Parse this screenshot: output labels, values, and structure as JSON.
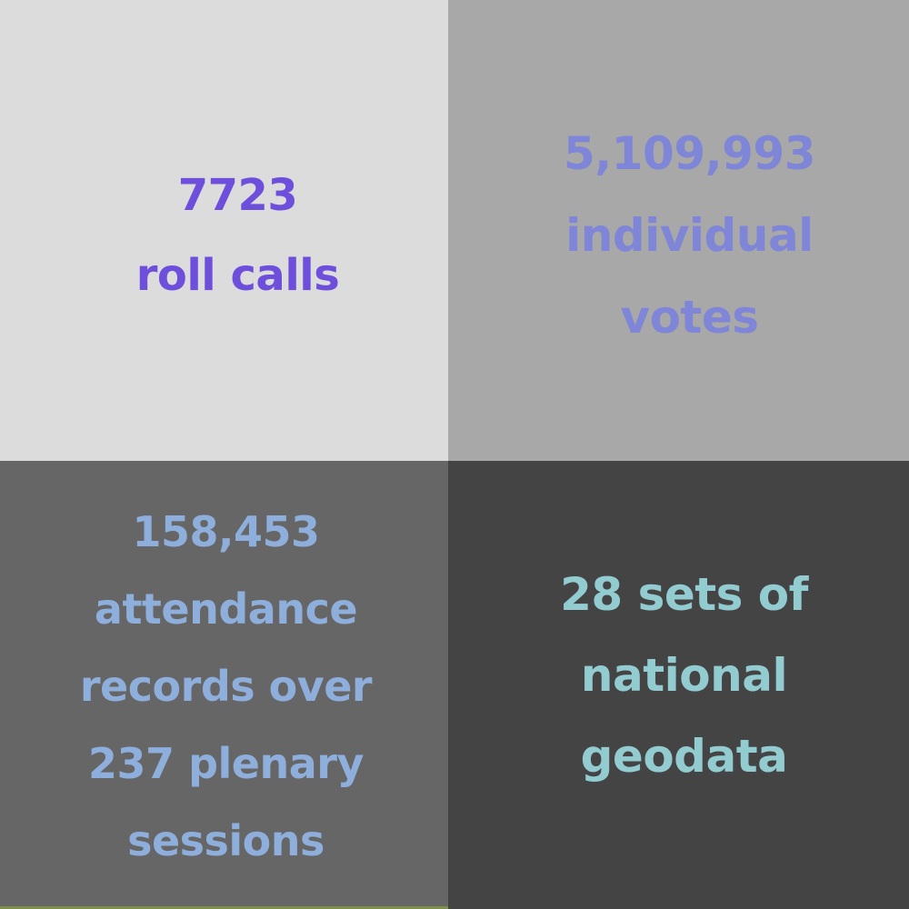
{
  "tiles": [
    {
      "lines": [
        "7723",
        "roll calls"
      ],
      "background": "#dcdcdc",
      "text_color": "#6d4fdc"
    },
    {
      "lines": [
        "5,109,993",
        "individual",
        "votes"
      ],
      "background": "#a8a8a8",
      "text_color": "#7f86d8"
    },
    {
      "lines": [
        "158,453",
        "attendance",
        "records over",
        "237 plenary",
        "sessions"
      ],
      "background": "#666666",
      "text_color": "#8eaedb"
    },
    {
      "lines": [
        "28 sets of",
        "national",
        "geodata"
      ],
      "background": "#444444",
      "text_color": "#92ccd0"
    }
  ]
}
